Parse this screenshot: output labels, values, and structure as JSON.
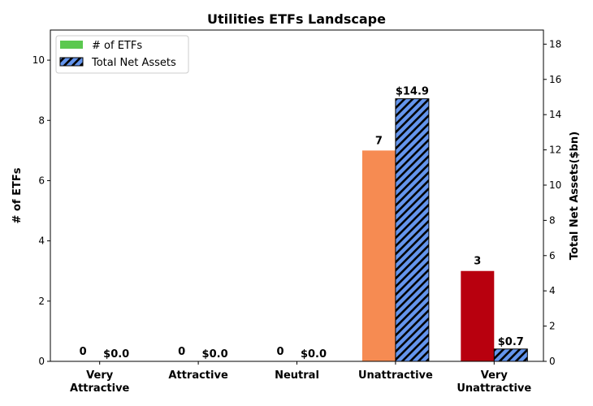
{
  "chart_data": {
    "type": "bar",
    "title": "Utilities ETFs Landscape",
    "categories": [
      "Very\nAttractive",
      "Attractive",
      "Neutral",
      "Unattractive",
      "Very\nUnattractive"
    ],
    "ylabel": "# of ETFs",
    "y2label": "Total Net Assets($bn)",
    "ylim": [
      0,
      11
    ],
    "y2lim": [
      0,
      18.8
    ],
    "yticks": [
      "0",
      "2",
      "4",
      "6",
      "8",
      "10"
    ],
    "y2ticks": [
      "0",
      "2",
      "4",
      "6",
      "8",
      "10",
      "12",
      "14",
      "16",
      "18"
    ],
    "series": [
      {
        "name": "# of ETFs",
        "axis": "left",
        "values": [
          0,
          0,
          0,
          7,
          3
        ],
        "labels": [
          "0",
          "0",
          "0",
          "7",
          "3"
        ],
        "bar_colors": [
          "#2e8b2e",
          "#7cc576",
          "#ffd966",
          "#f68b52",
          "#b8000e"
        ],
        "legend_color": "#5bc84f"
      },
      {
        "name": "Total Net Assets",
        "axis": "right",
        "values": [
          0.0,
          0.0,
          0.0,
          14.9,
          0.7
        ],
        "labels": [
          "$0.0",
          "$0.0",
          "$0.0",
          "$14.9",
          "$0.7"
        ],
        "color": "#6495ed",
        "hatch": "diagonal"
      }
    ],
    "legend_position": "upper-left",
    "grid": false
  }
}
